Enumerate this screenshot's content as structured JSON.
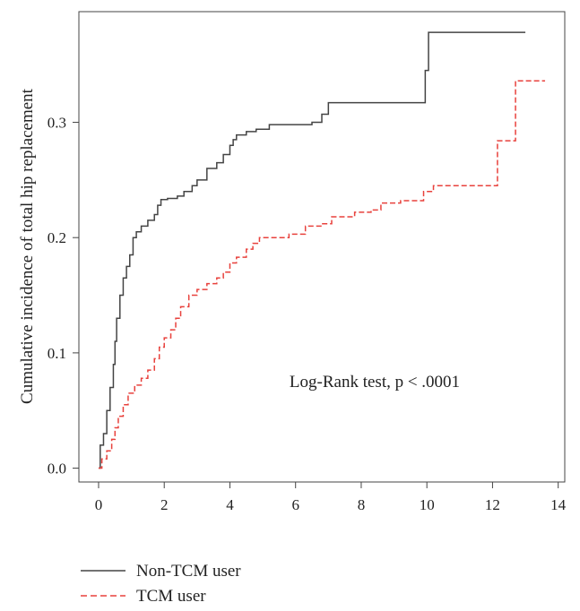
{
  "chart_data": {
    "type": "line",
    "ylabel": "Cumulative incidence of total hip replacement",
    "xlabel": "",
    "xlim": [
      -0.6,
      14.2
    ],
    "ylim": [
      -0.012,
      0.396
    ],
    "x_ticks": [
      0,
      2,
      4,
      6,
      8,
      10,
      12,
      14
    ],
    "y_ticks": [
      0.0,
      0.1,
      0.2,
      0.3
    ],
    "x_tick_labels": [
      "0",
      "2",
      "4",
      "6",
      "8",
      "10",
      "12",
      "14"
    ],
    "y_tick_labels": [
      "0.0",
      "0.1",
      "0.2",
      "0.3"
    ],
    "annotation": "Log-Rank test, p < .0001",
    "legend_position": "bottom-left",
    "series": [
      {
        "name": "Non-TCM user",
        "color": "#444444",
        "dash": "solid",
        "points": [
          [
            0,
            0
          ],
          [
            0.05,
            0.02
          ],
          [
            0.15,
            0.03
          ],
          [
            0.25,
            0.05
          ],
          [
            0.35,
            0.07
          ],
          [
            0.45,
            0.09
          ],
          [
            0.5,
            0.11
          ],
          [
            0.55,
            0.13
          ],
          [
            0.65,
            0.15
          ],
          [
            0.75,
            0.165
          ],
          [
            0.85,
            0.175
          ],
          [
            0.95,
            0.185
          ],
          [
            1.05,
            0.2
          ],
          [
            1.15,
            0.205
          ],
          [
            1.3,
            0.21
          ],
          [
            1.5,
            0.215
          ],
          [
            1.7,
            0.22
          ],
          [
            1.8,
            0.228
          ],
          [
            1.9,
            0.233
          ],
          [
            2.1,
            0.234
          ],
          [
            2.4,
            0.236
          ],
          [
            2.6,
            0.24
          ],
          [
            2.85,
            0.245
          ],
          [
            3.0,
            0.25
          ],
          [
            3.3,
            0.26
          ],
          [
            3.6,
            0.265
          ],
          [
            3.8,
            0.272
          ],
          [
            4.0,
            0.28
          ],
          [
            4.1,
            0.285
          ],
          [
            4.2,
            0.289
          ],
          [
            4.5,
            0.292
          ],
          [
            4.8,
            0.294
          ],
          [
            5.2,
            0.298
          ],
          [
            6.0,
            0.298
          ],
          [
            6.5,
            0.3
          ],
          [
            6.8,
            0.307
          ],
          [
            7.0,
            0.317
          ],
          [
            9.9,
            0.317
          ],
          [
            9.95,
            0.345
          ],
          [
            10.05,
            0.378
          ],
          [
            13.0,
            0.378
          ]
        ]
      },
      {
        "name": "TCM user",
        "color": "#e8413c",
        "dash": "dashed",
        "points": [
          [
            0,
            0
          ],
          [
            0.1,
            0.008
          ],
          [
            0.25,
            0.015
          ],
          [
            0.4,
            0.025
          ],
          [
            0.5,
            0.035
          ],
          [
            0.6,
            0.045
          ],
          [
            0.75,
            0.055
          ],
          [
            0.9,
            0.065
          ],
          [
            1.1,
            0.072
          ],
          [
            1.3,
            0.078
          ],
          [
            1.5,
            0.085
          ],
          [
            1.7,
            0.095
          ],
          [
            1.85,
            0.105
          ],
          [
            2.0,
            0.113
          ],
          [
            2.2,
            0.12
          ],
          [
            2.35,
            0.13
          ],
          [
            2.5,
            0.14
          ],
          [
            2.75,
            0.15
          ],
          [
            3.0,
            0.155
          ],
          [
            3.3,
            0.16
          ],
          [
            3.6,
            0.165
          ],
          [
            3.8,
            0.17
          ],
          [
            4.0,
            0.178
          ],
          [
            4.2,
            0.183
          ],
          [
            4.5,
            0.19
          ],
          [
            4.7,
            0.195
          ],
          [
            4.9,
            0.2
          ],
          [
            5.8,
            0.203
          ],
          [
            6.3,
            0.21
          ],
          [
            6.8,
            0.212
          ],
          [
            7.1,
            0.218
          ],
          [
            7.8,
            0.222
          ],
          [
            8.3,
            0.224
          ],
          [
            8.6,
            0.23
          ],
          [
            9.2,
            0.232
          ],
          [
            9.9,
            0.24
          ],
          [
            10.2,
            0.245
          ],
          [
            12.1,
            0.245
          ],
          [
            12.15,
            0.284
          ],
          [
            12.7,
            0.336
          ],
          [
            13.6,
            0.336
          ]
        ]
      }
    ]
  }
}
